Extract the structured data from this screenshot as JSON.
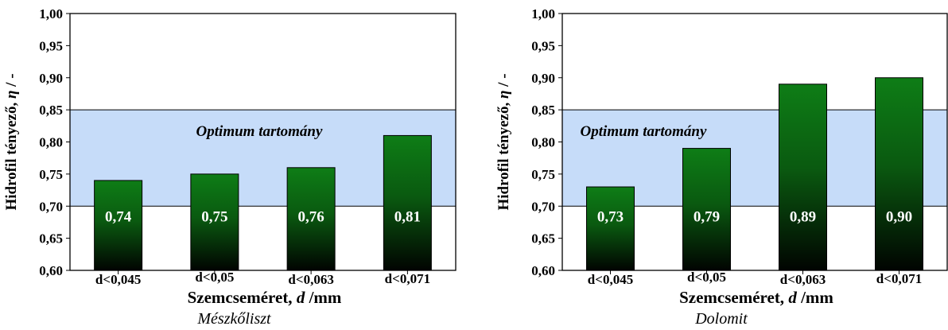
{
  "colors": {
    "optimum_band": "#c6dcf9",
    "bar_top": "#0e7d16",
    "bar_bottom": "#010401",
    "axis": "#000000",
    "bar_label": "#ffffff"
  },
  "chart_data": [
    {
      "type": "bar",
      "title": "",
      "caption": "Mészkőliszt",
      "xlabel_prefix": "Szemcseméret,",
      "xlabel_var": "d",
      "xlabel_suffix": "/mm",
      "ylabel_prefix": "Hidrofil tényező,",
      "ylabel_var": "η",
      "ylabel_suffix": "/ -",
      "ylim": [
        0.6,
        1.0
      ],
      "yticks": [
        "0,60",
        "0,65",
        "0,70",
        "0,75",
        "0,80",
        "0,85",
        "0,90",
        "0,95",
        "1,00"
      ],
      "categories": [
        "d<0,045",
        "d<0,05",
        "d<0,063",
        "d<0,071"
      ],
      "values": [
        0.74,
        0.75,
        0.76,
        0.81
      ],
      "value_labels": [
        "0,74",
        "0,75",
        "0,76",
        "0,81"
      ],
      "optimum_range": [
        0.7,
        0.85
      ],
      "optimum_label": "Optimum tartomány"
    },
    {
      "type": "bar",
      "title": "",
      "caption": "Dolomit",
      "xlabel_prefix": "Szemcseméret,",
      "xlabel_var": "d",
      "xlabel_suffix": "/mm",
      "ylabel_prefix": "Hidrofil tényező,",
      "ylabel_var": "η",
      "ylabel_suffix": "/ -",
      "ylim": [
        0.6,
        1.0
      ],
      "yticks": [
        "0,60",
        "0,65",
        "0,70",
        "0,75",
        "0,80",
        "0,85",
        "0,90",
        "0,95",
        "1,00"
      ],
      "categories": [
        "d<0,045",
        "d<0,05",
        "d<0,063",
        "d<0,071"
      ],
      "values": [
        0.73,
        0.79,
        0.89,
        0.9
      ],
      "value_labels": [
        "0,73",
        "0,79",
        "0,89",
        "0,90"
      ],
      "optimum_range": [
        0.7,
        0.85
      ],
      "optimum_label": "Optimum tartomány"
    }
  ]
}
